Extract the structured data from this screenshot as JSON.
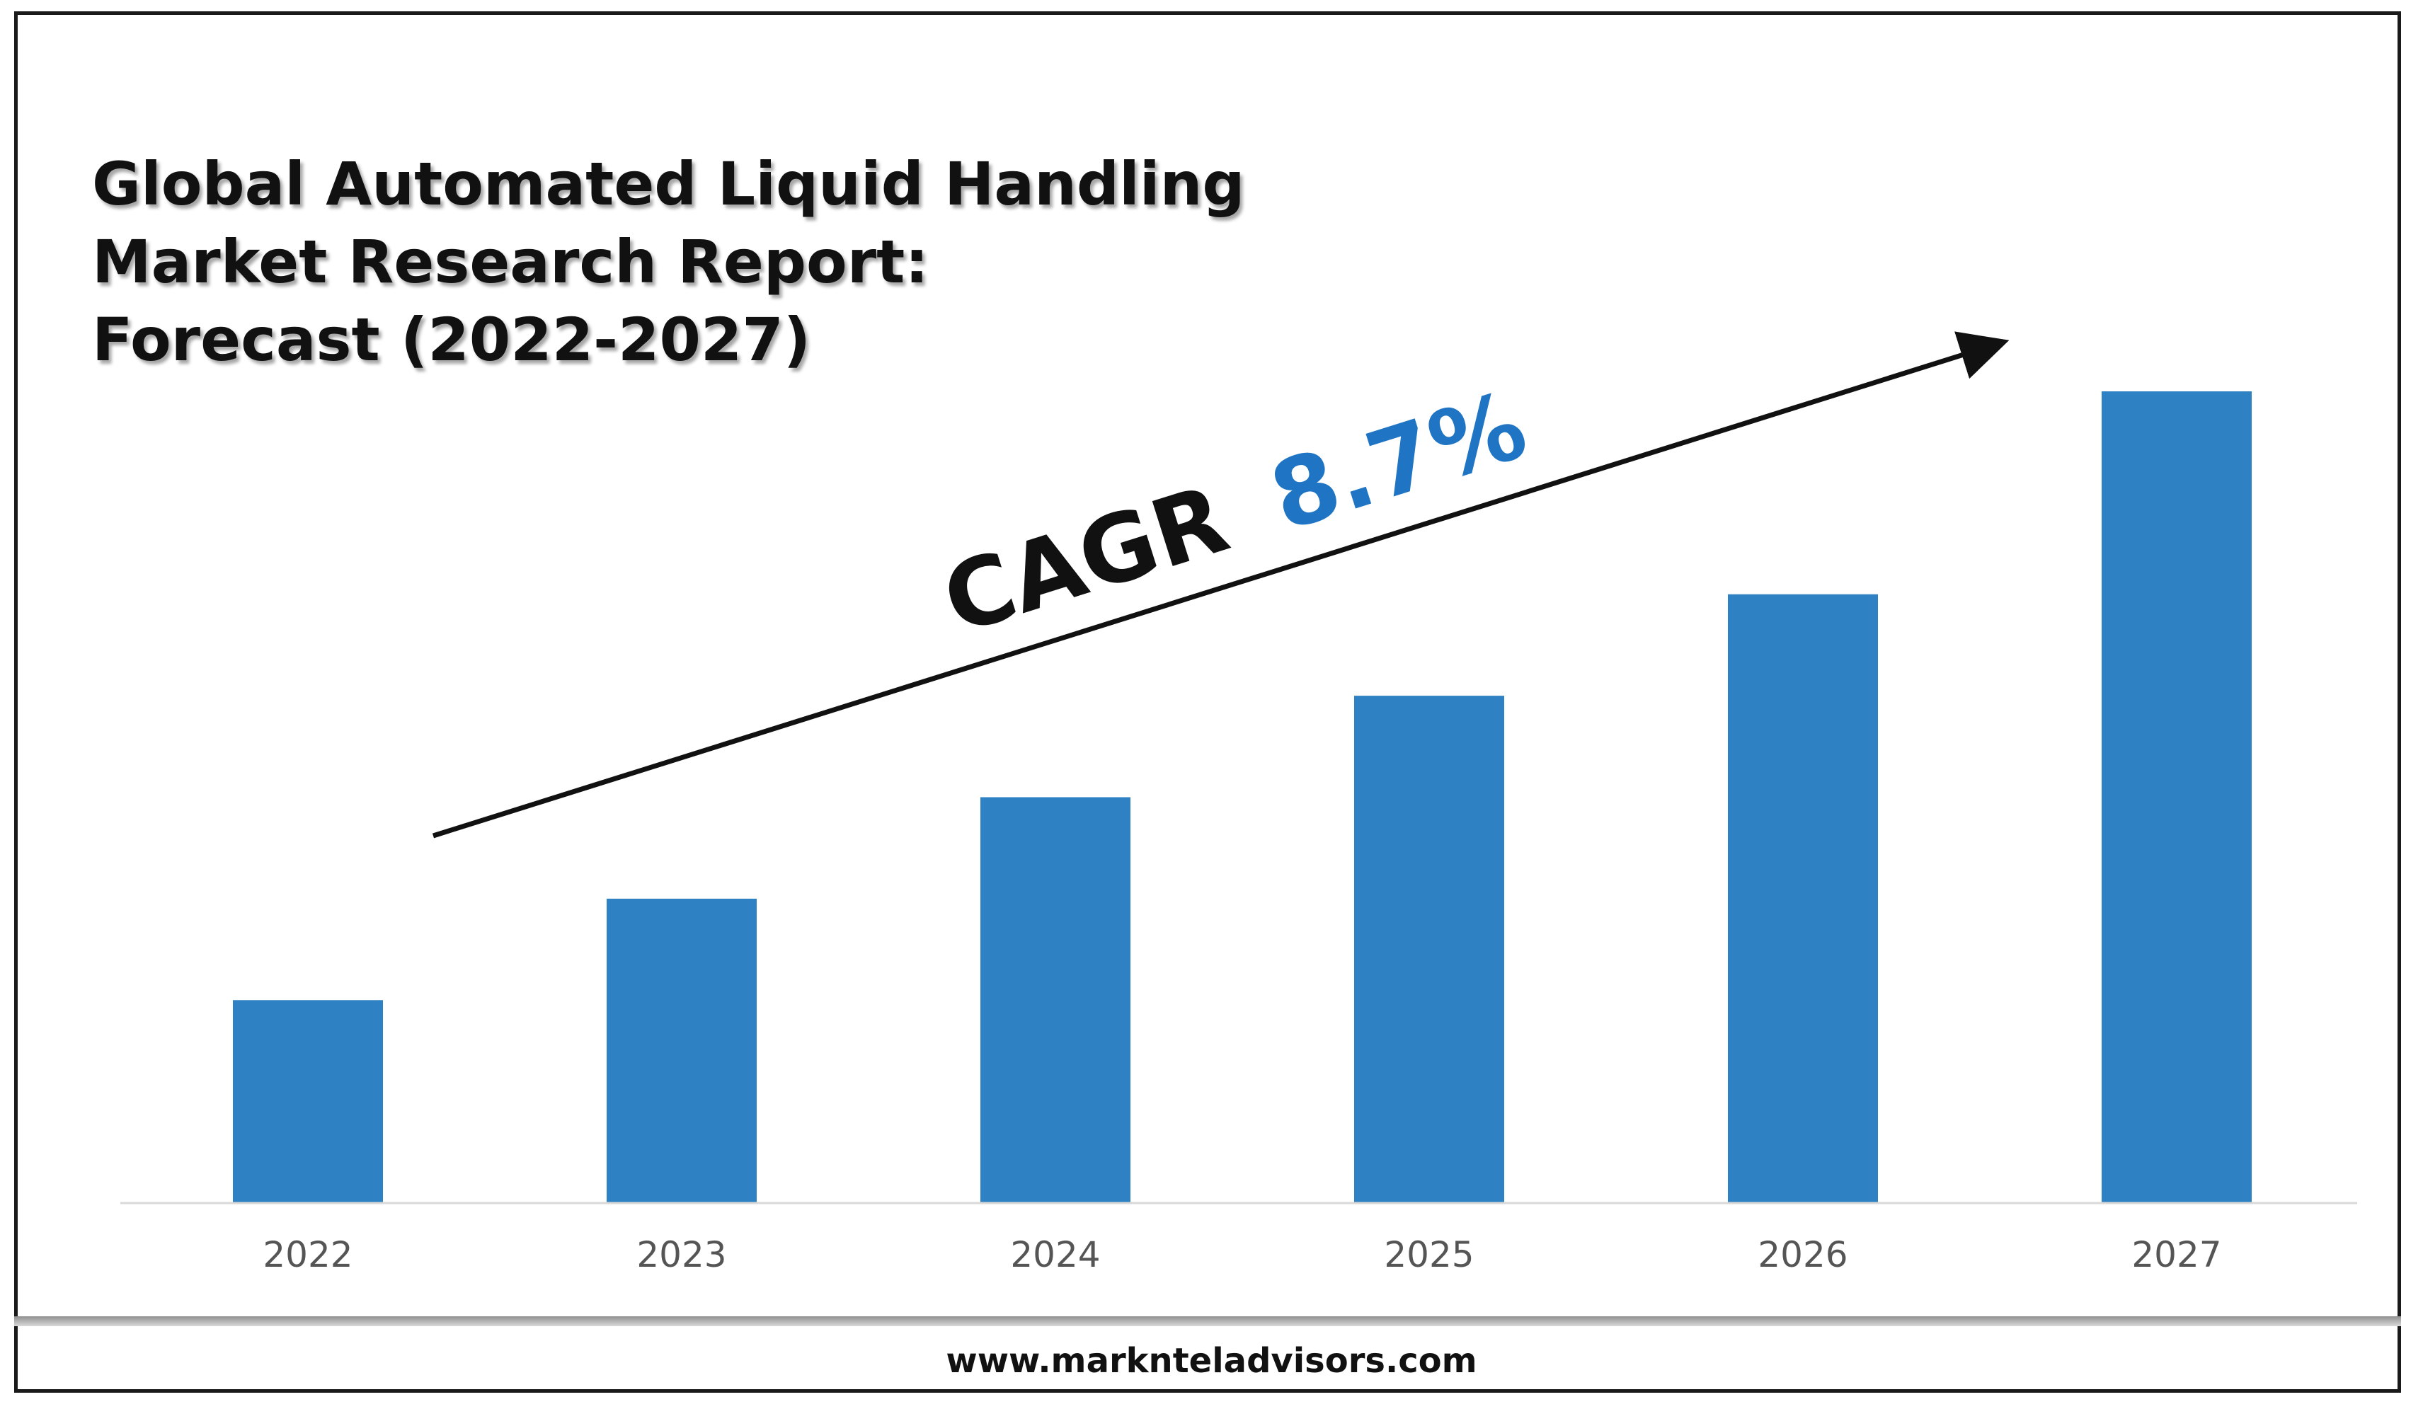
{
  "title": {
    "line1": "Global Automated Liquid Handling",
    "line2": "Market Research Report:",
    "line3": "Forecast (2022-2027)"
  },
  "annotation": {
    "cagr_label": "CAGR",
    "cagr_value": "8.7%"
  },
  "footer": {
    "url": "www.marknteladvisors.com"
  },
  "colors": {
    "bar": "#2e82c4",
    "cagr_value": "#1f75c4",
    "text": "#111111"
  },
  "chart_data": {
    "type": "bar",
    "title": "Global Automated Liquid Handling Market Research Report: Forecast (2022-2027)",
    "categories": [
      "2022",
      "2023",
      "2024",
      "2025",
      "2026",
      "2027"
    ],
    "values": [
      25,
      37.5,
      50,
      62.5,
      75,
      100
    ],
    "xlabel": "",
    "ylabel": "",
    "ylim": [
      0,
      100
    ],
    "grid": false,
    "legend": "none",
    "annotations": [
      "CAGR 8.7%"
    ]
  }
}
